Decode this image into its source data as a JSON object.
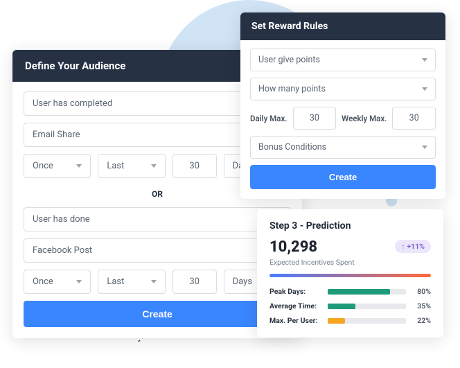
{
  "colors": {
    "header_bg": "#263244",
    "primary_btn": "#3a86ff",
    "circle_bg": "#d1e4f5",
    "border": "#d8dde3",
    "text_muted": "#5a6470"
  },
  "audience": {
    "title": "Define Your Audience",
    "select_completed": "User has completed",
    "select_email": "Email Share",
    "once1": "Once",
    "last1": "Last",
    "days_count1": "30",
    "days_label1": "Days",
    "or": "OR",
    "select_done": "User has done",
    "select_facebook": "Facebook Post",
    "once2": "Once",
    "last2": "Last",
    "days_count2": "30",
    "days_label2": "Days",
    "create": "Create"
  },
  "reward": {
    "title": "Set Reward Rules",
    "select_give": "User give points",
    "select_howmany": "How many points",
    "daily_label": "Daily Max.",
    "daily_val": "30",
    "weekly_label": "Weekly Max.",
    "weekly_val": "30",
    "select_bonus": "Bonus Conditions",
    "create": "Create"
  },
  "prediction": {
    "title": "Step 3 - Prediction",
    "bignum": "10,298",
    "subtext": "Expected Incentives Spent",
    "badge_arrow": "↑",
    "badge_val": "+11%",
    "metrics": {
      "peak": {
        "label": "Peak Days:",
        "pct": 80,
        "pct_label": "80%",
        "color": "#1e9b7a"
      },
      "avg": {
        "label": "Average Time:",
        "pct": 35,
        "pct_label": "35%",
        "color": "#1e9b7a"
      },
      "max": {
        "label": "Max. Per User:",
        "pct": 22,
        "pct_label": "22%",
        "color": "#f5a623"
      }
    }
  }
}
